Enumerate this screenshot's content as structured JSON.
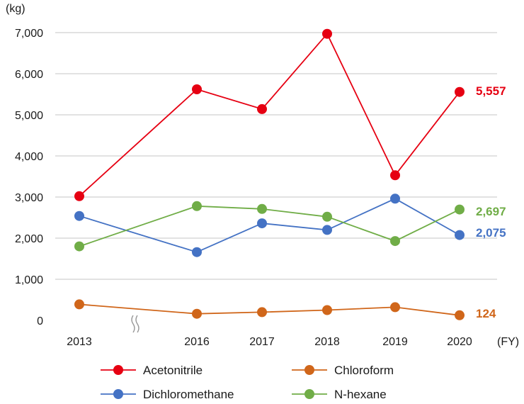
{
  "chart_data": {
    "type": "line",
    "y_unit": "(kg)",
    "x_unit": "(FY)",
    "categories": [
      "2013",
      "2016",
      "2017",
      "2018",
      "2019",
      "2020"
    ],
    "axis_break_between": [
      "2013",
      "2016"
    ],
    "ylim": [
      0,
      7000
    ],
    "yticks": [
      0,
      1000,
      2000,
      3000,
      4000,
      5000,
      6000,
      7000
    ],
    "ytick_labels": [
      "0",
      "1,000",
      "2,000",
      "3,000",
      "4,000",
      "5,000",
      "6,000",
      "7,000"
    ],
    "grid": true,
    "legend_position": "bottom",
    "series": [
      {
        "name": "Acetonitrile",
        "color": "#e60012",
        "values": [
          3020,
          5620,
          5140,
          6970,
          3530,
          5557
        ],
        "end_label": "5,557"
      },
      {
        "name": "Chloroform",
        "color": "#d0661a",
        "values": [
          390,
          160,
          200,
          250,
          320,
          124
        ],
        "end_label": "124"
      },
      {
        "name": "Dichloromethane",
        "color": "#4472c4",
        "values": [
          2540,
          1660,
          2360,
          2200,
          2960,
          2075
        ],
        "end_label": "2,075"
      },
      {
        "name": "N-hexane",
        "color": "#70ad47",
        "values": [
          1800,
          2780,
          2710,
          2520,
          1930,
          2697
        ],
        "end_label": "2,697"
      }
    ]
  }
}
